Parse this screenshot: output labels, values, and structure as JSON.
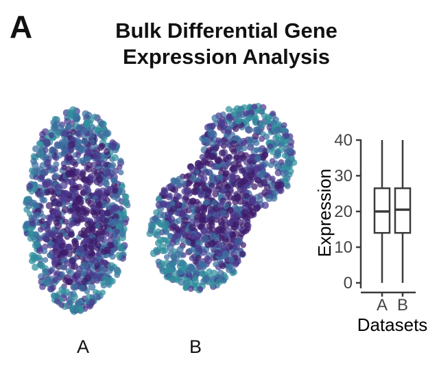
{
  "figure": {
    "panel_label": "A",
    "title_line1": "Bulk Differential Gene",
    "title_line2": "Expression Analysis"
  },
  "colors": {
    "dark_purple": "#3d1c6b",
    "mid_purple": "#4b3a8f",
    "blue": "#3b6ea0",
    "teal": "#2f8f9c",
    "box_stroke": "#3a3a3a"
  },
  "chart_data": [
    {
      "type": "scatter",
      "series": [
        {
          "name": "A",
          "shape": "rounded-oval"
        },
        {
          "name": "B",
          "shape": "kidney"
        }
      ]
    },
    {
      "type": "box",
      "categories": [
        "A",
        "B"
      ],
      "series": [
        {
          "name": "A",
          "min": 0,
          "q1": 14,
          "median": 20,
          "q3": 26.5,
          "max": 40
        },
        {
          "name": "B",
          "min": 0,
          "q1": 14,
          "median": 20.5,
          "q3": 26.5,
          "max": 40
        }
      ],
      "ylabel": "Expression",
      "xlabel": "Datasets",
      "yticks": [
        "0",
        "10",
        "20",
        "30",
        "40"
      ],
      "ylim": [
        0,
        40
      ]
    }
  ]
}
